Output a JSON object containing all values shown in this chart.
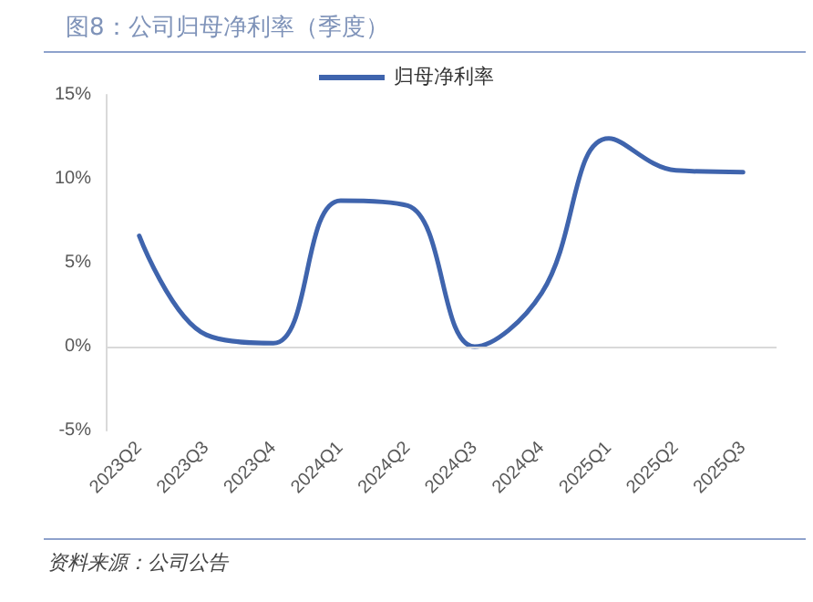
{
  "chart_data": {
    "type": "line",
    "title": "图8：公司归母净利率（季度）",
    "annotations": [
      "资料来源：公司公告"
    ],
    "categories": [
      "2023Q2",
      "2023Q3",
      "2023Q4",
      "2024Q1",
      "2024Q2",
      "2024Q3",
      "2024Q4",
      "2025Q1",
      "2025Q2",
      "2025Q3"
    ],
    "series": [
      {
        "name": "归母净利率",
        "color": "#3f64ad",
        "values": [
          6.6,
          0.7,
          0.2,
          8.7,
          8.4,
          0.0,
          3.2,
          12.4,
          10.5,
          10.4
        ]
      }
    ],
    "ylim": [
      -5,
      15
    ],
    "yticks": [
      {
        "value": -5,
        "label": "-5%"
      },
      {
        "value": 0,
        "label": "0%"
      },
      {
        "value": 5,
        "label": "5%"
      },
      {
        "value": 10,
        "label": "10%"
      },
      {
        "value": 15,
        "label": "15%"
      }
    ],
    "ref_lines": [
      {
        "axis": "y",
        "value": 0,
        "color": "#d9d9d9"
      }
    ],
    "grid": false,
    "legend": "top",
    "marker": "none",
    "line_style": "solid"
  }
}
